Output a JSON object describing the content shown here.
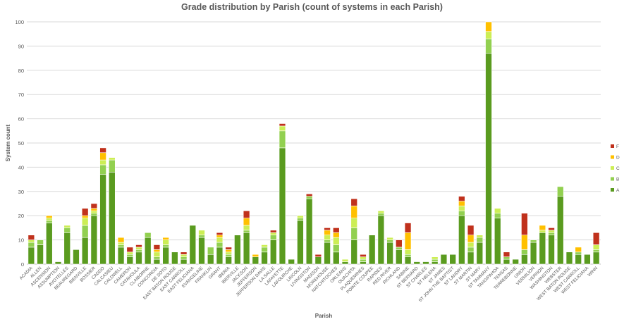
{
  "chart_data": {
    "type": "bar",
    "stacked": true,
    "title": "Grade distribution by Parish (count of systems in each Parish)",
    "xlabel": "Parish",
    "ylabel": "System count",
    "ylim": [
      0,
      100
    ],
    "yticks": [
      0,
      10,
      20,
      30,
      40,
      50,
      60,
      70,
      80,
      90,
      100
    ],
    "grid": true,
    "legend_position": "right",
    "legend_order": [
      "F",
      "D",
      "C",
      "B",
      "A"
    ],
    "categories": [
      "ACADIA",
      "ALLEN",
      "ASCENSION",
      "ASSUMPTION",
      "AVOYELLES",
      "BEAUREGARD",
      "BIENVILLE",
      "BOSSIER",
      "CADDO",
      "CALCASIEU",
      "CALDWELL",
      "CAMERON",
      "CATAHOULA",
      "CLAIBORNE",
      "CONCORDIA",
      "DE SOTO",
      "EAST BATON ROUGE",
      "EAST CARROLL",
      "EAST FELICIANA",
      "EVANGELINE",
      "FRANKLIN",
      "GRANT",
      "IBERIA",
      "IBERVILLE",
      "JACKSON",
      "JEFFERSON",
      "JEFFERSON DAVIS",
      "LA SALLE",
      "LAFAYETTE",
      "LAFOURCHE",
      "LINCOLN",
      "LIVINGSTON",
      "MADISON",
      "MOREHOUSE",
      "NATCHITOCHES",
      "ORLEANS",
      "OUACHITA",
      "PLAQUEMINES",
      "POINTE COUPEE",
      "RAPIDES",
      "RED RIVER",
      "RICHLAND",
      "SABINE",
      "ST BERNARD",
      "ST CHARLES",
      "ST HELENA",
      "ST JAMES",
      "ST JOHN THE BAPTIST",
      "ST LANDRY",
      "ST MARTIN",
      "ST MARY",
      "ST TAMMANY",
      "TANGIPAHOA",
      "TENSAS",
      "TERREBONNE",
      "UNION",
      "VERMILION",
      "VERNON",
      "WASHINGTON",
      "WEBSTER",
      "WEST BATON ROUGE",
      "WEST CARROLL",
      "WEST FELICIANA",
      "WINN"
    ],
    "series": [
      {
        "name": "A",
        "color": "#5a9b1f",
        "values": [
          7,
          8,
          17,
          1,
          13,
          6,
          11,
          20,
          37,
          38,
          7,
          3,
          5,
          11,
          2,
          7,
          5,
          2,
          16,
          11,
          4,
          7,
          3,
          12,
          13,
          3,
          5,
          10,
          48,
          2,
          18,
          27,
          3,
          9,
          5,
          1,
          10,
          1,
          12,
          20,
          9,
          6,
          3,
          1,
          1,
          1,
          4,
          4,
          20,
          5,
          9,
          87,
          19,
          2,
          2,
          4,
          9,
          13,
          12,
          28,
          5,
          4,
          4,
          5
        ]
      },
      {
        "name": "B",
        "color": "#92d050",
        "values": [
          2,
          2,
          1,
          0,
          2,
          0,
          5,
          1,
          4,
          5,
          1,
          1,
          1,
          2,
          1,
          1,
          0,
          1,
          0,
          1,
          3,
          2,
          1,
          0,
          1,
          0,
          2,
          2,
          7,
          0,
          1,
          1,
          0,
          1,
          3,
          0,
          5,
          1,
          0,
          1,
          1,
          1,
          1,
          0,
          0,
          1,
          0,
          0,
          2,
          2,
          2,
          6,
          2,
          1,
          0,
          2,
          1,
          0,
          1,
          4,
          0,
          1,
          0,
          1
        ]
      },
      {
        "name": "C",
        "color": "#ccee55",
        "values": [
          1,
          0,
          1,
          0,
          1,
          0,
          3,
          1,
          2,
          1,
          1,
          1,
          1,
          0,
          2,
          2,
          0,
          1,
          0,
          2,
          0,
          2,
          1,
          0,
          2,
          0,
          1,
          1,
          2,
          0,
          1,
          0,
          0,
          2,
          3,
          1,
          4,
          1,
          0,
          1,
          1,
          0,
          2,
          0,
          0,
          1,
          0,
          0,
          2,
          2,
          1,
          3,
          2,
          0,
          0,
          0,
          0,
          1,
          1,
          0,
          0,
          0,
          0,
          2
        ]
      },
      {
        "name": "D",
        "color": "#ffc000",
        "values": [
          0,
          0,
          1,
          0,
          0,
          0,
          1,
          1,
          3,
          0,
          2,
          0,
          0,
          0,
          1,
          1,
          0,
          0,
          0,
          0,
          0,
          1,
          1,
          0,
          3,
          1,
          0,
          0,
          0,
          0,
          0,
          0,
          0,
          2,
          2,
          0,
          5,
          0,
          0,
          0,
          0,
          0,
          7,
          0,
          0,
          0,
          0,
          0,
          2,
          3,
          0,
          4,
          0,
          0,
          0,
          6,
          0,
          2,
          0,
          0,
          0,
          2,
          0,
          0
        ]
      },
      {
        "name": "F",
        "color": "#c0311c",
        "values": [
          2,
          0,
          0,
          0,
          0,
          0,
          3,
          2,
          2,
          0,
          0,
          2,
          1,
          0,
          2,
          0,
          0,
          1,
          0,
          0,
          0,
          1,
          1,
          0,
          3,
          0,
          0,
          1,
          1,
          0,
          0,
          1,
          1,
          1,
          2,
          0,
          3,
          1,
          0,
          0,
          0,
          3,
          4,
          0,
          0,
          0,
          0,
          0,
          2,
          4,
          0,
          0,
          0,
          2,
          0,
          9,
          0,
          0,
          1,
          0,
          0,
          0,
          0,
          5
        ]
      }
    ]
  }
}
